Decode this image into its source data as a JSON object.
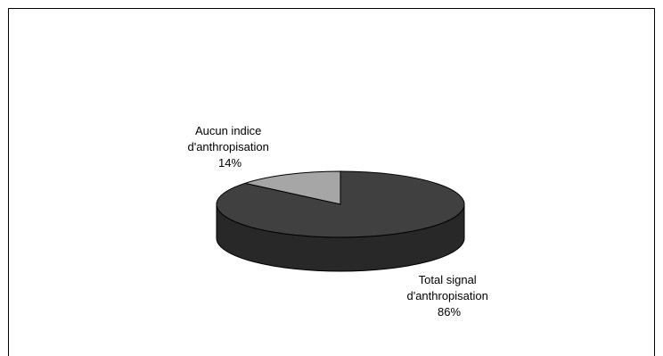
{
  "chart_data": {
    "type": "pie",
    "style": "3d",
    "slices": [
      {
        "label_lines": [
          "Aucun indice",
          "d'anthropisation"
        ],
        "percent_label": "14%",
        "value": 14,
        "color": "#a6a6a6"
      },
      {
        "label_lines": [
          "Total signal",
          "d'anthropisation"
        ],
        "percent_label": "86%",
        "value": 86,
        "color": "#404040"
      }
    ],
    "legend": "none",
    "border": "#000000"
  }
}
